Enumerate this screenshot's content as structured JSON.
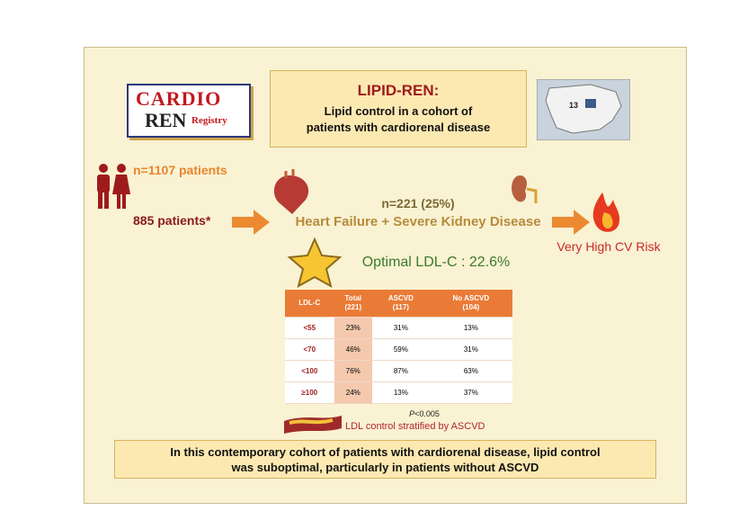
{
  "logo": {
    "line1": "CARDIO",
    "line2": "REN",
    "line3": "Registry"
  },
  "header": {
    "title": "LIPID-REN:",
    "subtitle": [
      "Lipid control in a cohort of",
      "patients with cardiorenal disease"
    ]
  },
  "map": {
    "label": "13"
  },
  "flow": {
    "total": "n=1107 patients",
    "included": "885 patients*",
    "subgroup_n": "n=221 (25%)",
    "subgroup": "Heart Failure + Severe Kidney Disease",
    "risk": "Very High CV Risk"
  },
  "optimal": "Optimal LDL-C : 22.6%",
  "table": {
    "header": [
      [
        "LDL-C"
      ],
      [
        "Total",
        "(221)"
      ],
      [
        "ASCVD",
        "(117)"
      ],
      [
        "No ASCVD",
        "(104)"
      ]
    ],
    "rows": [
      [
        "<55",
        "23%",
        "31%",
        "13%"
      ],
      [
        "<70",
        "46%",
        "59%",
        "31%"
      ],
      [
        "<100",
        "76%",
        "87%",
        "63%"
      ],
      [
        "≥100",
        "24%",
        "13%",
        "37%"
      ]
    ]
  },
  "pvalue": {
    "symbol": "P",
    "rest": "<0.005"
  },
  "footnote": "LDL control stratified by ASCVD",
  "conclusion": [
    "In this contemporary cohort of patients with cardiorenal disease, lipid control",
    "was suboptimal, particularly in patients without ASCVD"
  ]
}
